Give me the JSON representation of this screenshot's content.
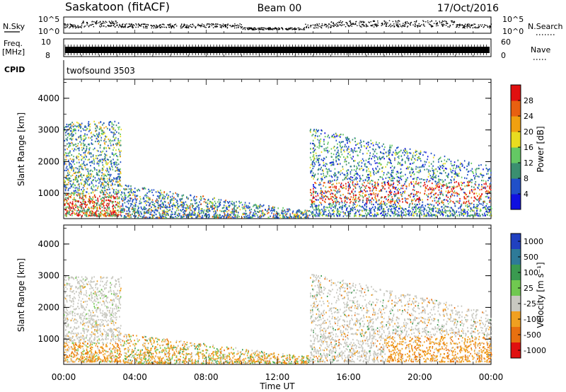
{
  "header": {
    "title": "Saskatoon (fitACF)",
    "beam": "Beam 00",
    "date": "17/Oct/2016"
  },
  "strips": {
    "nsky_label": "N.Sky",
    "nsky_ticks": [
      "10^5",
      "10^0"
    ],
    "nsearch_label": "N.Search",
    "nsearch_ticks": [
      "10^5",
      "10^0"
    ],
    "freq_label": "Freq.",
    "freq_unit": "[MHz]",
    "freq_ticks": [
      "10",
      "8"
    ],
    "nave_label": "Nave",
    "nave_ticks": [
      "60",
      "0"
    ],
    "cpid_label": "CPID",
    "cpid_value": "twofsound 3503"
  },
  "chart_data": [
    {
      "type": "heatmap",
      "title": "",
      "ylabel": "Slant Range [km]",
      "xlabel": "",
      "ylim": [
        200,
        4600
      ],
      "yticks": [
        "4000",
        "3000",
        "2000",
        "1000"
      ],
      "colorbar": {
        "label": "Power [dB]",
        "ticks": [
          "28",
          "24",
          "20",
          "16",
          "12",
          "8",
          "4"
        ],
        "colors": [
          "#1010e0",
          "#2050c8",
          "#3a8f70",
          "#64c864",
          "#e8dc20",
          "#f0a010",
          "#e86010",
          "#e01010"
        ]
      },
      "regions": [
        {
          "t": [
            0.0,
            3.2
          ],
          "r": [
            300,
            3400
          ],
          "level": "mixed"
        },
        {
          "t": [
            3.2,
            9.5
          ],
          "r": [
            300,
            1400
          ],
          "level": "low"
        },
        {
          "t": [
            9.5,
            13.8
          ],
          "r": [
            250,
            600
          ],
          "level": "low"
        },
        {
          "t": [
            13.8,
            24.0
          ],
          "r": [
            300,
            3100
          ],
          "level": "high"
        }
      ]
    },
    {
      "type": "heatmap",
      "title": "",
      "ylabel": "Slant Range [km]",
      "xlabel": "Time UT",
      "ylim": [
        200,
        4600
      ],
      "yticks": [
        "4000",
        "3000",
        "2000",
        "1000"
      ],
      "xticks": [
        "00:00",
        "04:00",
        "08:00",
        "12:00",
        "16:00",
        "20:00",
        "00:00"
      ],
      "colorbar": {
        "label": "Velocity [m s⁻¹]",
        "ticks": [
          "1000",
          "500",
          "100",
          "25",
          "-25",
          "-100",
          "-500",
          "-1000"
        ],
        "colors": [
          "#2040c0",
          "#2e7a98",
          "#3a9a50",
          "#70c850",
          "#c8c8c0",
          "#f0a020",
          "#e87010",
          "#e01010"
        ]
      },
      "regions": [
        {
          "t": [
            0.0,
            3.2
          ],
          "r": [
            300,
            3000
          ],
          "level": "mixed"
        },
        {
          "t": [
            3.2,
            13.8
          ],
          "r": [
            300,
            1200
          ],
          "level": "low"
        },
        {
          "t": [
            13.8,
            24.0
          ],
          "r": [
            300,
            3100
          ],
          "level": "mixed"
        }
      ]
    }
  ]
}
